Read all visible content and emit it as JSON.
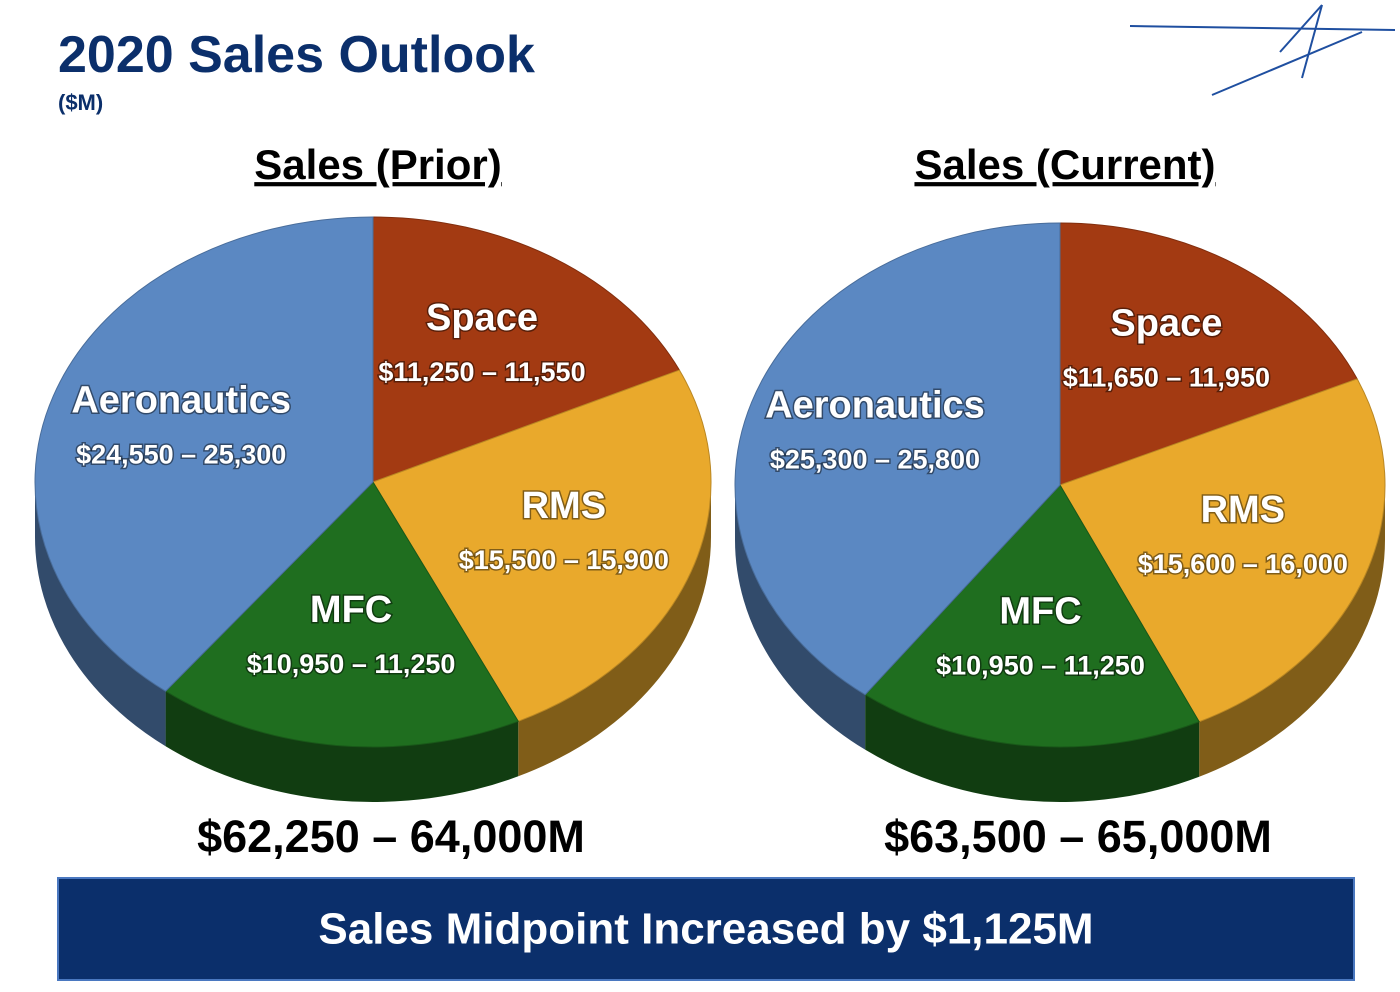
{
  "title": "2020 Sales Outlook",
  "subtitle": "($M)",
  "chart_data": [
    {
      "type": "pie",
      "title": "Sales (Prior)",
      "categories": [
        "Space",
        "RMS",
        "MFC",
        "Aeronautics"
      ],
      "values": [
        [
          11250,
          11550
        ],
        [
          15500,
          15900
        ],
        [
          10950,
          11250
        ],
        [
          24550,
          25300
        ]
      ],
      "value_labels": [
        "$11,250 – 11,550",
        "$15,500 – 15,900",
        "$10,950 – 11,250",
        "$24,550 – 25,300"
      ],
      "colors": [
        "#a33a12",
        "#e9a92c",
        "#1f6e1f",
        "#5b88c2"
      ],
      "total_label": "$62,250 – 64,000M"
    },
    {
      "type": "pie",
      "title": "Sales (Current)",
      "categories": [
        "Space",
        "RMS",
        "MFC",
        "Aeronautics"
      ],
      "values": [
        [
          11650,
          11950
        ],
        [
          15600,
          16000
        ],
        [
          10950,
          11250
        ],
        [
          25300,
          25800
        ]
      ],
      "value_labels": [
        "$11,650 – 11,950",
        "$15,600 – 16,000",
        "$10,950 – 11,250",
        "$25,300 – 25,800"
      ],
      "colors": [
        "#a33a12",
        "#e9a92c",
        "#1f6e1f",
        "#5b88c2"
      ],
      "total_label": "$63,500 – 65,000M"
    }
  ],
  "banner": "Sales Midpoint Increased by $1,125M"
}
